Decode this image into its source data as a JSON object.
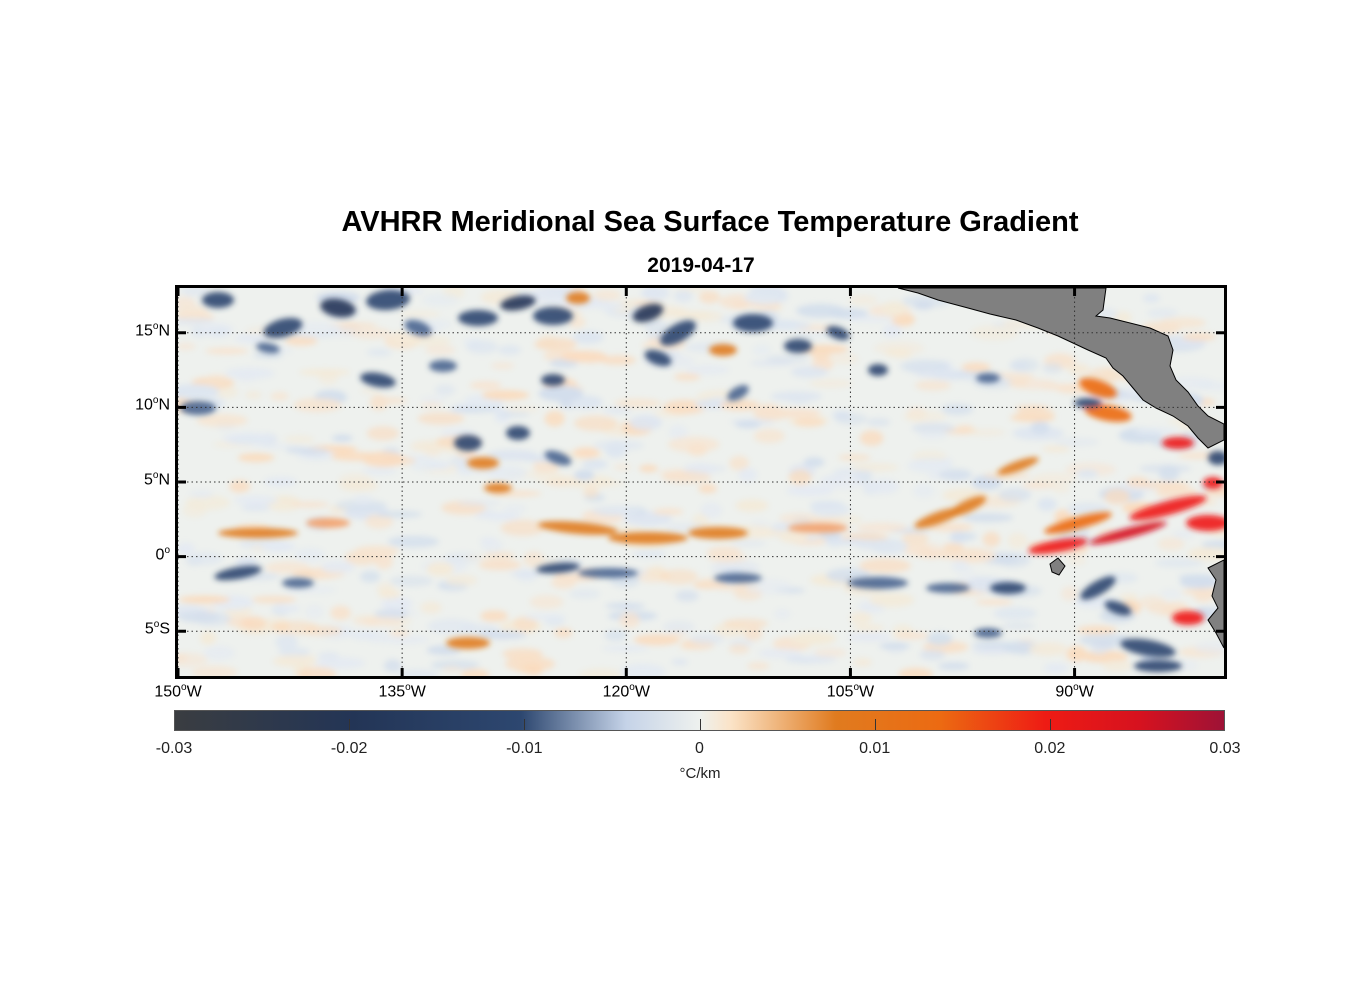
{
  "title": "AVHRR Meridional Sea Surface Temperature Gradient",
  "subtitle": "2019-04-17",
  "map": {
    "lon_range": [
      -150,
      -80
    ],
    "lat_range": [
      -8,
      18
    ],
    "land_color": "#808080",
    "grid": "dotted",
    "lat_ticks": [
      {
        "value": 15,
        "deg": "15",
        "suffix": "N"
      },
      {
        "value": 10,
        "deg": "10",
        "suffix": "N"
      },
      {
        "value": 5,
        "deg": "5",
        "suffix": "N"
      },
      {
        "value": 0,
        "deg": "0",
        "suffix": ""
      },
      {
        "value": -5,
        "deg": "5",
        "suffix": "S"
      }
    ],
    "lon_ticks": [
      {
        "value": -150,
        "deg": "150",
        "suffix": "W"
      },
      {
        "value": -135,
        "deg": "135",
        "suffix": "W"
      },
      {
        "value": -120,
        "deg": "120",
        "suffix": "W"
      },
      {
        "value": -105,
        "deg": "105",
        "suffix": "W"
      },
      {
        "value": -90,
        "deg": "90",
        "suffix": "W"
      }
    ]
  },
  "colorbar": {
    "min": -0.03,
    "max": 0.03,
    "tick_labels": [
      "-0.03",
      "-0.02",
      "-0.01",
      "0",
      "0.01",
      "0.02",
      "0.03"
    ],
    "unit": "°C/km",
    "colormap": [
      "#3a3d41",
      "#233556",
      "#2d4770",
      "#c5d3e8",
      "#eef1ee",
      "#fbe3c7",
      "#e07b1f",
      "#ee1b14",
      "#9e1236"
    ]
  }
}
